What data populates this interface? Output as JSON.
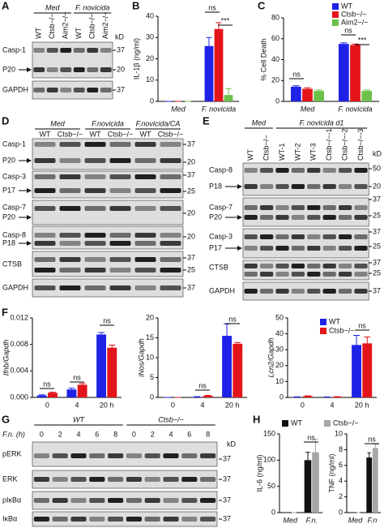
{
  "panel_labels": [
    "A",
    "B",
    "C",
    "D",
    "E",
    "F",
    "G",
    "H"
  ],
  "blot_A": {
    "groups": [
      "Med",
      "F. novicida"
    ],
    "lanes": [
      "WT",
      "Ctsb−/−",
      "Aim2−/−",
      "WT",
      "Ctsb−/−",
      "Aim2−/−"
    ],
    "unit": "kD",
    "rows": [
      "Casp-1",
      "P20",
      "GAPDH"
    ],
    "markers": [
      37,
      20,
      37
    ]
  },
  "blot_D": {
    "groups": [
      "Med",
      "F.novicida",
      "F.novicida/CA"
    ],
    "lanes": [
      "WT",
      "Ctsb−/−",
      "WT",
      "Ctsb−/−",
      "WT",
      "Ctsb−/−"
    ],
    "rows": [
      "Casp-1",
      "P20",
      "Casp-3",
      "P17",
      "Casp-7",
      "P20",
      "Casp-8",
      "P18",
      "CTSB",
      "GAPDH"
    ],
    "markers": [
      37,
      20,
      37,
      25,
      20,
      20,
      37,
      25,
      37
    ]
  },
  "blot_E": {
    "groups": [
      "Med",
      "F. novicida d1"
    ],
    "lanes": [
      "WT",
      "Ctsb−/−",
      "WT-1",
      "WT-2",
      "WT-3",
      "Ctsb−/−-1",
      "Ctsb−/−-2",
      "Ctsb−/−-3"
    ],
    "unit": "kD",
    "rows": [
      "Casp-8",
      "P18",
      "Casp-7",
      "P20",
      "Casp-3",
      "P17",
      "CTSB",
      "GAPDH"
    ],
    "markers": [
      50,
      20,
      37,
      25,
      37,
      25,
      37,
      25,
      37
    ]
  },
  "blot_G": {
    "axis_label": "F.n. (h)",
    "groups": [
      "WT",
      "Ctsb−/−"
    ],
    "lanes": [
      0,
      2,
      4,
      6,
      8,
      0,
      2,
      4,
      6,
      8
    ],
    "unit": "kD",
    "rows": [
      "pERK",
      "ERK",
      "pIκBα",
      "IκBα"
    ],
    "markers": [
      37,
      37,
      37,
      37
    ]
  },
  "chart_data": [
    {
      "type": "bar",
      "ylabel": "IL-1β (ng/ml)",
      "categories": [
        "Med",
        "F. novicida"
      ],
      "series": [
        {
          "color": "#1f22e6",
          "values": [
            0,
            26
          ],
          "errors": [
            0,
            4
          ]
        },
        {
          "color": "#e3151b",
          "values": [
            0,
            34
          ],
          "errors": [
            0,
            3
          ]
        },
        {
          "color": "#6cc04a",
          "values": [
            0,
            3
          ],
          "errors": [
            0,
            3
          ]
        }
      ],
      "ylim": [
        0,
        40
      ],
      "yticks": [
        0,
        10,
        20,
        30,
        40
      ],
      "annotations": [
        "ns",
        "***"
      ]
    },
    {
      "type": "bar",
      "ylabel": "% Cell Death",
      "categories": [
        "Med",
        "F. novicida"
      ],
      "series": [
        {
          "name": "WT",
          "color": "#1f22e6",
          "values": [
            14,
            55
          ],
          "errors": [
            1,
            1
          ]
        },
        {
          "name": "Ctsb−/−",
          "color": "#e3151b",
          "values": [
            12,
            54
          ],
          "errors": [
            1,
            1
          ]
        },
        {
          "name": "Aim2−/−",
          "color": "#6cc04a",
          "values": [
            10,
            10
          ],
          "errors": [
            1,
            1
          ]
        }
      ],
      "ylim": [
        0,
        80
      ],
      "yticks": [
        0,
        20,
        40,
        60,
        80
      ],
      "annotations": [
        "ns",
        "ns",
        "***"
      ]
    },
    {
      "type": "bar",
      "ylabel": "Ifnb/Gapdh",
      "categories": [
        "0",
        "4",
        "20 h"
      ],
      "series": [
        {
          "color": "#1f22e6",
          "values": [
            0.0003,
            0.0012,
            0.0095
          ],
          "errors": [
            0.0001,
            0.0002,
            0.0003
          ]
        },
        {
          "color": "#e3151b",
          "values": [
            0.0007,
            0.0019,
            0.0075
          ],
          "errors": [
            0.0001,
            0.0002,
            0.0004
          ]
        }
      ],
      "ylim": [
        0,
        0.012
      ],
      "yticks": [
        {
          "value": 0,
          "label": "0.000"
        },
        {
          "value": 0.004,
          "label": "0.004"
        },
        {
          "value": 0.008,
          "label": "0.008"
        },
        {
          "value": 0.012,
          "label": "0.012"
        }
      ],
      "annotations": [
        "ns",
        "ns",
        "ns"
      ]
    },
    {
      "type": "bar",
      "ylabel": "iNos/Gapdh",
      "categories": [
        "0",
        "4",
        "20 h"
      ],
      "series": [
        {
          "color": "#1f22e6",
          "values": [
            0,
            0.1,
            15.5
          ],
          "errors": [
            0,
            0.1,
            3
          ]
        },
        {
          "color": "#e3151b",
          "values": [
            0,
            0.4,
            13.5
          ],
          "errors": [
            0,
            0.1,
            0.3
          ]
        }
      ],
      "ylim": [
        0,
        20
      ],
      "yticks": [
        0,
        5,
        10,
        15,
        20
      ],
      "annotations": [
        "ns",
        "ns"
      ]
    },
    {
      "type": "bar",
      "ylabel": "Lcn2/Gapdh",
      "categories": [
        "0",
        "4",
        "20 h"
      ],
      "series": [
        {
          "name": "WT",
          "color": "#1f22e6",
          "values": [
            0.3,
            0.2,
            33
          ],
          "errors": [
            0.1,
            0.1,
            6
          ]
        },
        {
          "name": "Ctsb−/−",
          "color": "#e3151b",
          "values": [
            0.8,
            0.4,
            34
          ],
          "errors": [
            0.2,
            0.1,
            4
          ]
        }
      ],
      "ylim": [
        0,
        50
      ],
      "yticks": [
        0,
        10,
        20,
        30,
        40,
        50
      ],
      "annotations": [
        "ns"
      ]
    },
    {
      "type": "bar",
      "ylabel": "IL-6 (ng/ml)",
      "categories": [
        "Med",
        "F.n."
      ],
      "series": [
        {
          "name": "WT",
          "color": "#111111",
          "values": [
            0,
            100
          ],
          "errors": [
            0,
            15
          ]
        },
        {
          "name": "Ctsb−/−",
          "color": "#a6a6a6",
          "values": [
            0,
            115
          ],
          "errors": [
            0,
            25
          ]
        }
      ],
      "ylim": [
        0,
        150
      ],
      "yticks": [
        0,
        50,
        100,
        150
      ],
      "annotations": [
        "ns"
      ]
    },
    {
      "type": "bar",
      "ylabel": "TNF (ng/ml)",
      "categories": [
        "Med",
        "F.n"
      ],
      "series": [
        {
          "color": "#111111",
          "values": [
            0,
            7
          ],
          "errors": [
            0,
            0.6
          ]
        },
        {
          "color": "#a6a6a6",
          "values": [
            0,
            8.2
          ],
          "errors": [
            0,
            0.5
          ]
        }
      ],
      "ylim": [
        0,
        10
      ],
      "yticks": [
        0,
        2,
        4,
        6,
        8,
        10
      ],
      "annotations": [
        "ns"
      ]
    }
  ]
}
